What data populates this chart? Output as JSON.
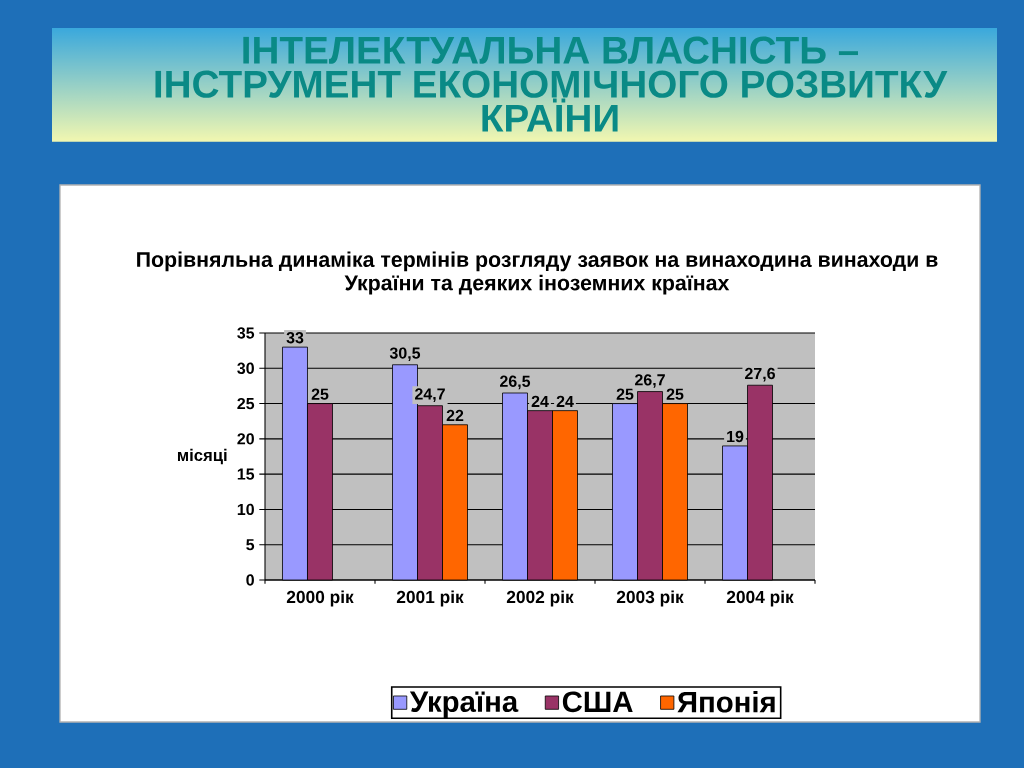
{
  "chart_data": {
    "type": "bar",
    "title": "ІНТЕЛЕКТУАЛЬНА ВЛАСНІСТЬ – ІНСТРУМЕНТ ЕКОНОМІЧНОГО РОЗВИТКУ КРАЇНИ",
    "subtitle": "Порівняльна динаміка термінів розгляду заявок на винаходина винаходи в України та деяких іноземних країнах",
    "ylabel": "місяці",
    "categories": [
      "2000 рік",
      "2001 рік",
      "2002 рік",
      "2003 рік",
      "2004 рік"
    ],
    "series": [
      {
        "name": "Україна",
        "color": "#9999ff",
        "values": [
          33,
          30.5,
          26.5,
          25,
          19
        ],
        "value_labels": [
          "33",
          "30,5",
          "26,5",
          "25",
          "19"
        ]
      },
      {
        "name": "США",
        "color": "#993366",
        "values": [
          25,
          24.7,
          24,
          26.7,
          27.6
        ],
        "value_labels": [
          "25",
          "24,7",
          "24",
          "26,7",
          "27,6"
        ]
      },
      {
        "name": "Японія",
        "color": "#ff6600",
        "values": [
          null,
          22,
          24,
          25,
          null
        ],
        "value_labels": [
          null,
          "22",
          "24",
          "25",
          null
        ]
      }
    ],
    "ylim": [
      0,
      35
    ],
    "yticks": [
      0,
      5,
      10,
      15,
      20,
      25,
      30,
      35
    ],
    "grid": "y",
    "legend": "bottom"
  }
}
